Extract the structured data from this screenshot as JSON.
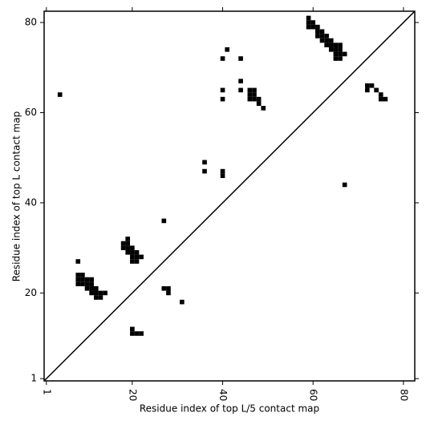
{
  "chart_data": {
    "type": "contact-map",
    "xlabel": "Residue index of top L/5 contact map",
    "ylabel": "Residue index of top L contact map",
    "xlim": [
      0.5,
      82.5
    ],
    "ylim": [
      0.5,
      82.5
    ],
    "xticks": [
      1,
      20,
      40,
      60,
      80
    ],
    "yticks": [
      1,
      20,
      40,
      60,
      80
    ],
    "diagonal": true,
    "color": "#000000",
    "x": [
      4,
      27,
      8,
      8,
      9,
      8,
      9,
      10,
      11,
      8,
      9,
      10,
      11,
      10,
      11,
      12,
      11,
      12,
      13,
      14,
      12,
      13,
      19,
      18,
      19,
      18,
      19,
      20,
      19,
      20,
      21,
      20,
      21,
      22,
      20,
      21,
      27,
      28,
      28,
      31,
      20,
      20,
      21,
      22,
      36,
      36,
      40,
      40,
      40,
      41,
      44,
      40,
      40,
      44,
      44,
      46,
      47,
      46,
      47,
      46,
      47,
      48,
      48,
      49,
      59,
      59,
      60,
      59,
      60,
      61,
      61,
      62,
      61,
      62,
      63,
      62,
      63,
      64,
      63,
      64,
      65,
      66,
      64,
      65,
      66,
      65,
      66,
      67,
      65,
      66,
      72,
      73,
      72,
      74,
      75,
      75,
      76,
      67
    ],
    "y": [
      64,
      36,
      27,
      24,
      24,
      23,
      23,
      23,
      23,
      22,
      22,
      22,
      22,
      21,
      21,
      21,
      20,
      20,
      20,
      20,
      19,
      19,
      32,
      31,
      31,
      30,
      30,
      30,
      29,
      29,
      29,
      28,
      28,
      28,
      27,
      27,
      21,
      21,
      20,
      18,
      12,
      11,
      11,
      11,
      49,
      47,
      47,
      46,
      72,
      74,
      72,
      65,
      63,
      67,
      65,
      65,
      65,
      64,
      64,
      63,
      63,
      63,
      62,
      61,
      81,
      80,
      80,
      79,
      79,
      79,
      78,
      78,
      77,
      77,
      77,
      76,
      76,
      76,
      75,
      75,
      75,
      75,
      74,
      74,
      74,
      73,
      73,
      73,
      72,
      72,
      66,
      66,
      65,
      65,
      64,
      63,
      63,
      44
    ]
  }
}
